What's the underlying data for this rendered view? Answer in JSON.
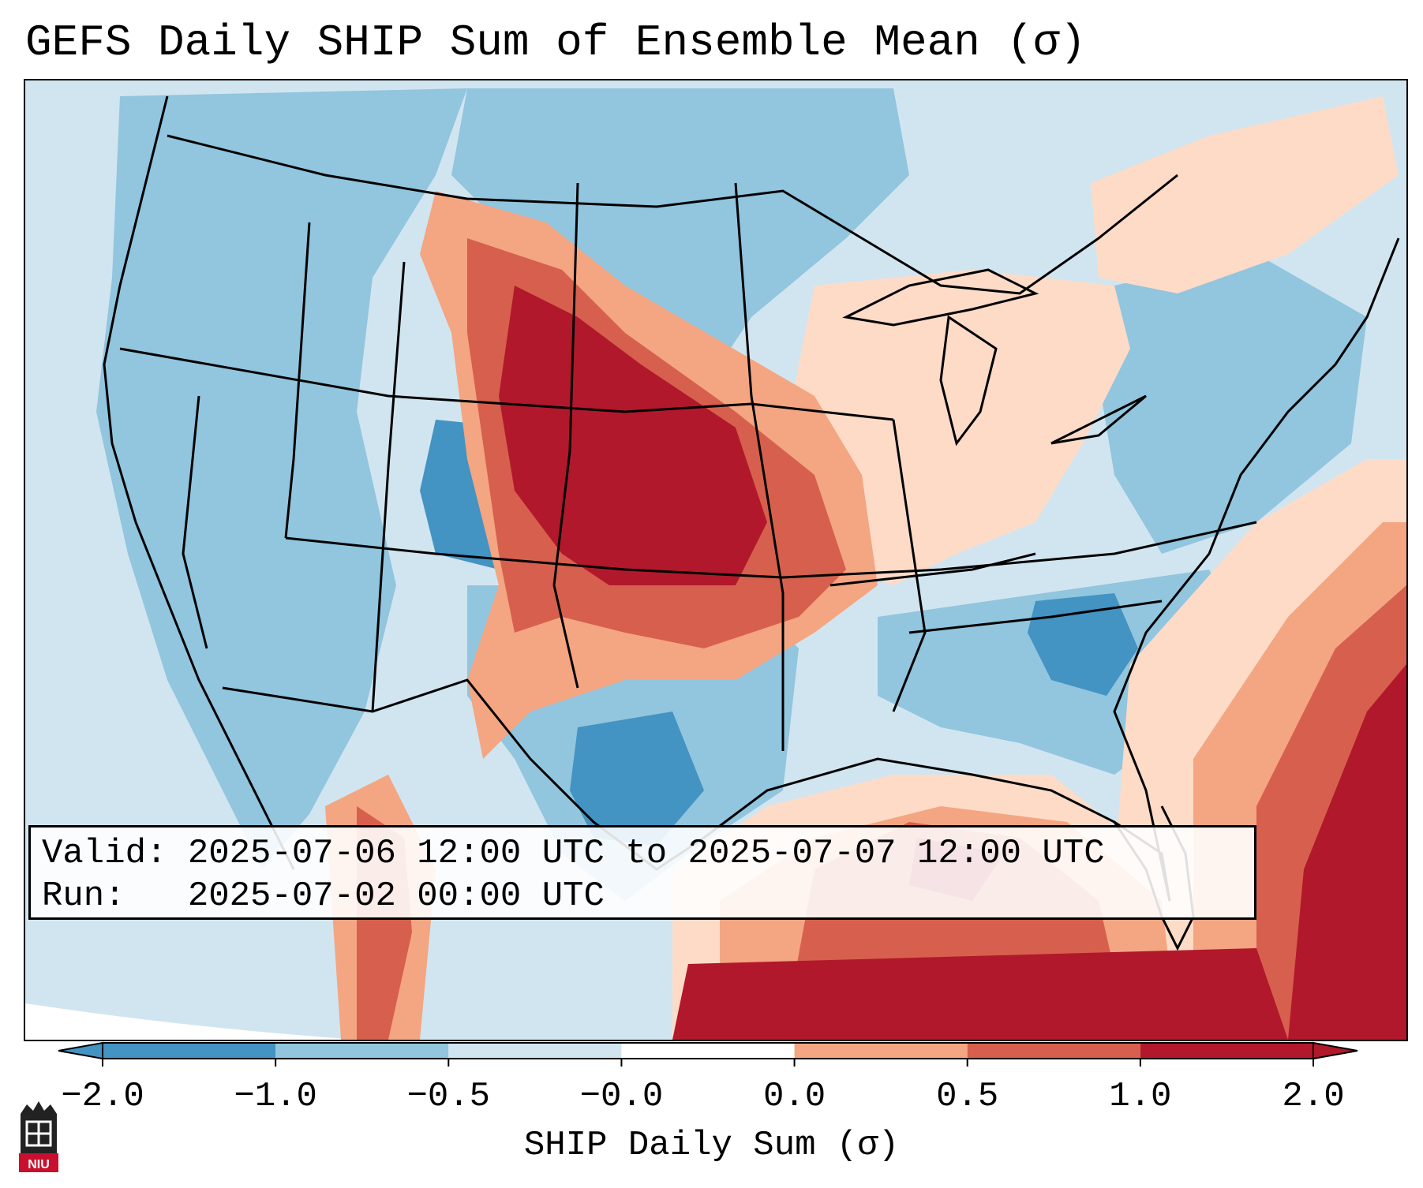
{
  "title": "GEFS Daily SHIP Sum of Ensemble Mean (σ)",
  "info": {
    "valid_line": "Valid: 2025-07-06 12:00 UTC to 2025-07-07 12:00 UTC",
    "run_line": "Run:   2025-07-02 00:00 UTC"
  },
  "colorbar": {
    "label": "SHIP Daily Sum (σ)",
    "ticks": [
      "−2.0",
      "−1.0",
      "−0.5",
      "−0.0",
      "0.0",
      "0.5",
      "1.0",
      "2.0"
    ],
    "colors": [
      "#4393c3",
      "#92c5de",
      "#d1e5f0",
      "#ffffff",
      "#fddbc7",
      "#f4a582",
      "#d6604d",
      "#b2182b"
    ],
    "under_color": "#2166ac",
    "over_color": "#67001f"
  },
  "map": {
    "region": "CONUS",
    "ocean_color": "#d1e5f0"
  },
  "logo": {
    "text": "NIU",
    "color": "#c8102e"
  }
}
